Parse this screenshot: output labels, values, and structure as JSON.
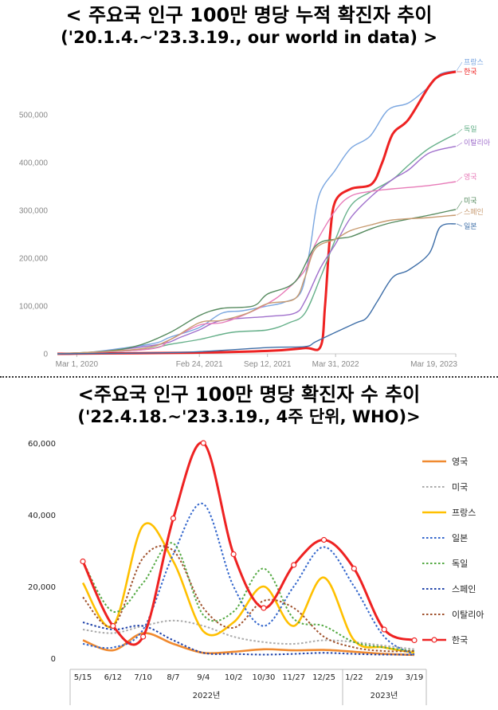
{
  "header": {
    "title1": "< 주요국 인구 100만 명당 누적 확진자 추이",
    "subtitle1": "('20.1.4.~'23.3.19., our world in data) >",
    "title2": "<주요국 인구 100만 명당 확진자 수 추이",
    "subtitle2": "('22.4.18.~'23.3.19., 4주 단위, WHO)>"
  },
  "chart_data": [
    {
      "type": "line",
      "title": "< 주요국 인구 100만 명당 누적 확진자 추이",
      "subtitle": "('20.1.4.~'23.3.19., our world in data) >",
      "x_tick_labels": [
        "Mar 1, 2020",
        "Feb 24, 2021",
        "Sep 12, 2021",
        "Mar 31, 2022",
        "Mar 19, 2023"
      ],
      "x_range": [
        "2020-01-04",
        "2023-03-19"
      ],
      "ylim": [
        0,
        600000
      ],
      "y_ticks": [
        0,
        100000,
        200000,
        300000,
        400000,
        500000
      ],
      "y_tick_labels": [
        "0",
        "100,000",
        "200,000",
        "300,000",
        "400,000",
        "500,000"
      ],
      "grid": false,
      "legend": "right, labels at line ends",
      "series": [
        {
          "name": "프랑스",
          "color": "#7aa6e0",
          "points": [
            [
              "2020-01-04",
              0
            ],
            [
              "2020-03-01",
              0
            ],
            [
              "2020-10-01",
              20000
            ],
            [
              "2020-12-01",
              35000
            ],
            [
              "2021-02-24",
              55000
            ],
            [
              "2021-05-01",
              85000
            ],
            [
              "2021-07-01",
              90000
            ],
            [
              "2021-09-12",
              100000
            ],
            [
              "2021-11-01",
              108000
            ],
            [
              "2021-12-20",
              130000
            ],
            [
              "2022-01-15",
              220000
            ],
            [
              "2022-02-10",
              330000
            ],
            [
              "2022-03-31",
              385000
            ],
            [
              "2022-05-15",
              430000
            ],
            [
              "2022-07-10",
              455000
            ],
            [
              "2022-09-01",
              510000
            ],
            [
              "2022-11-01",
              525000
            ],
            [
              "2023-01-01",
              560000
            ],
            [
              "2023-02-01",
              585000
            ],
            [
              "2023-03-19",
              592000
            ]
          ]
        },
        {
          "name": "한국",
          "color": "#ee2222",
          "points": [
            [
              "2020-01-04",
              0
            ],
            [
              "2020-03-01",
              500
            ],
            [
              "2021-01-01",
              2000
            ],
            [
              "2021-09-12",
              6000
            ],
            [
              "2021-12-31",
              12000
            ],
            [
              "2022-02-15",
              15000
            ],
            [
              "2022-02-28",
              100000
            ],
            [
              "2022-03-15",
              250000
            ],
            [
              "2022-03-31",
              320000
            ],
            [
              "2022-05-15",
              345000
            ],
            [
              "2022-07-15",
              355000
            ],
            [
              "2022-08-15",
              400000
            ],
            [
              "2022-09-15",
              460000
            ],
            [
              "2022-10-31",
              490000
            ],
            [
              "2022-12-31",
              560000
            ],
            [
              "2023-02-01",
              582000
            ],
            [
              "2023-03-19",
              590000
            ]
          ]
        },
        {
          "name": "독일",
          "color": "#66b08a",
          "points": [
            [
              "2020-01-04",
              0
            ],
            [
              "2020-09-01",
              8000
            ],
            [
              "2020-12-01",
              20000
            ],
            [
              "2021-02-24",
              30000
            ],
            [
              "2021-06-01",
              45000
            ],
            [
              "2021-09-12",
              50000
            ],
            [
              "2021-11-15",
              65000
            ],
            [
              "2021-12-31",
              85000
            ],
            [
              "2022-02-15",
              160000
            ],
            [
              "2022-03-31",
              240000
            ],
            [
              "2022-05-15",
              310000
            ],
            [
              "2022-07-15",
              340000
            ],
            [
              "2022-09-15",
              365000
            ],
            [
              "2022-11-01",
              395000
            ],
            [
              "2022-12-31",
              430000
            ],
            [
              "2023-03-19",
              460000
            ]
          ]
        },
        {
          "name": "이탈리아",
          "color": "#a070cc",
          "points": [
            [
              "2020-01-04",
              0
            ],
            [
              "2020-05-01",
              4000
            ],
            [
              "2020-11-01",
              20000
            ],
            [
              "2021-01-01",
              35000
            ],
            [
              "2021-02-24",
              50000
            ],
            [
              "2021-05-01",
              70000
            ],
            [
              "2021-09-12",
              78000
            ],
            [
              "2021-12-01",
              85000
            ],
            [
              "2021-12-31",
              110000
            ],
            [
              "2022-02-15",
              180000
            ],
            [
              "2022-03-31",
              230000
            ],
            [
              "2022-05-15",
              285000
            ],
            [
              "2022-07-15",
              330000
            ],
            [
              "2022-09-15",
              365000
            ],
            [
              "2022-11-01",
              385000
            ],
            [
              "2022-12-31",
              420000
            ],
            [
              "2023-03-19",
              434000
            ]
          ]
        },
        {
          "name": "영국",
          "color": "#e77bb8",
          "points": [
            [
              "2020-01-04",
              0
            ],
            [
              "2020-10-01",
              10000
            ],
            [
              "2020-12-01",
              30000
            ],
            [
              "2021-02-24",
              60000
            ],
            [
              "2021-05-01",
              65000
            ],
            [
              "2021-07-01",
              80000
            ],
            [
              "2021-09-12",
              105000
            ],
            [
              "2021-11-01",
              130000
            ],
            [
              "2021-12-31",
              175000
            ],
            [
              "2022-01-31",
              230000
            ],
            [
              "2022-03-31",
              300000
            ],
            [
              "2022-05-15",
              330000
            ],
            [
              "2022-07-15",
              340000
            ],
            [
              "2022-09-15",
              345000
            ],
            [
              "2022-12-31",
              352000
            ],
            [
              "2023-03-19",
              360000
            ]
          ]
        },
        {
          "name": "미국",
          "color": "#558a5e",
          "points": [
            [
              "2020-01-04",
              0
            ],
            [
              "2020-06-01",
              6000
            ],
            [
              "2020-09-01",
              18000
            ],
            [
              "2020-12-01",
              45000
            ],
            [
              "2021-02-24",
              80000
            ],
            [
              "2021-05-01",
              95000
            ],
            [
              "2021-08-01",
              100000
            ],
            [
              "2021-09-12",
              125000
            ],
            [
              "2021-12-01",
              150000
            ],
            [
              "2022-01-31",
              225000
            ],
            [
              "2022-03-31",
              240000
            ],
            [
              "2022-05-15",
              245000
            ],
            [
              "2022-07-15",
              262000
            ],
            [
              "2022-09-15",
              275000
            ],
            [
              "2022-12-31",
              290000
            ],
            [
              "2023-03-19",
              302000
            ]
          ]
        },
        {
          "name": "스페인",
          "color": "#c79a70",
          "points": [
            [
              "2020-01-04",
              0
            ],
            [
              "2020-09-01",
              10000
            ],
            [
              "2020-12-01",
              30000
            ],
            [
              "2021-02-24",
              65000
            ],
            [
              "2021-05-01",
              70000
            ],
            [
              "2021-07-15",
              85000
            ],
            [
              "2021-09-12",
              105000
            ],
            [
              "2021-12-01",
              115000
            ],
            [
              "2021-12-31",
              160000
            ],
            [
              "2022-01-31",
              220000
            ],
            [
              "2022-03-31",
              240000
            ],
            [
              "2022-05-15",
              258000
            ],
            [
              "2022-07-15",
              270000
            ],
            [
              "2022-09-15",
              280000
            ],
            [
              "2022-12-31",
              285000
            ],
            [
              "2023-03-19",
              290000
            ]
          ]
        },
        {
          "name": "일본",
          "color": "#3f6fa8",
          "points": [
            [
              "2020-01-04",
              0
            ],
            [
              "2021-01-01",
              3000
            ],
            [
              "2021-09-12",
              13000
            ],
            [
              "2021-12-31",
              15000
            ],
            [
              "2022-01-31",
              25000
            ],
            [
              "2022-03-31",
              45000
            ],
            [
              "2022-05-31",
              65000
            ],
            [
              "2022-06-30",
              75000
            ],
            [
              "2022-08-01",
              110000
            ],
            [
              "2022-09-15",
              160000
            ],
            [
              "2022-10-31",
              175000
            ],
            [
              "2022-12-31",
              210000
            ],
            [
              "2023-02-01",
              265000
            ],
            [
              "2023-03-19",
              272000
            ]
          ]
        }
      ]
    },
    {
      "type": "line",
      "title": "<주요국 인구 100만 명당 확진자 수 추이",
      "subtitle": "('22.4.18.~'23.3.19., 4주 단위, WHO)>",
      "categories": [
        "5/15",
        "6/12",
        "7/10",
        "8/7",
        "9/4",
        "10/2",
        "10/30",
        "11/27",
        "12/25",
        "1/22",
        "2/19",
        "3/19"
      ],
      "year_labels": [
        "2022년",
        "2023년"
      ],
      "ylim": [
        0,
        60000
      ],
      "y_ticks": [
        0,
        20000,
        40000,
        60000
      ],
      "y_tick_labels": [
        "0",
        "20,000",
        "40,000",
        "60,000"
      ],
      "ylabel": "",
      "grid": false,
      "legend": "right",
      "series": [
        {
          "name": "영국",
          "style": "solid",
          "color": "#f08a30",
          "values": [
            5000,
            2200,
            7000,
            4000,
            1500,
            1800,
            2500,
            2200,
            2300,
            1800,
            1200,
            900
          ]
        },
        {
          "name": "미국",
          "style": "dotted",
          "color": "#aaaaaa",
          "values": [
            8000,
            7000,
            9000,
            10500,
            9000,
            6000,
            4500,
            4000,
            5000,
            4500,
            3500,
            2500
          ]
        },
        {
          "name": "프랑스",
          "style": "solid",
          "color": "#ffc000",
          "values": [
            21000,
            9000,
            37000,
            27000,
            7500,
            10000,
            20000,
            9000,
            22500,
            5000,
            3000,
            1500
          ]
        },
        {
          "name": "일본",
          "style": "dotted",
          "color": "#3366cc",
          "values": [
            4000,
            3000,
            8000,
            29000,
            43000,
            20000,
            9000,
            20000,
            31000,
            20000,
            6000,
            1000
          ]
        },
        {
          "name": "독일",
          "style": "dotted",
          "color": "#55aa44",
          "values": [
            27000,
            13000,
            21000,
            32000,
            12000,
            13000,
            25000,
            11000,
            9000,
            4500,
            3000,
            2000
          ]
        },
        {
          "name": "스페인",
          "style": "dotted",
          "color": "#2244aa",
          "values": [
            10000,
            8000,
            9000,
            5000,
            1500,
            1200,
            1000,
            1200,
            1500,
            1200,
            1000,
            1000
          ]
        },
        {
          "name": "이탈리아",
          "style": "dotted",
          "color": "#a0522d",
          "values": [
            17000,
            9000,
            28000,
            30000,
            14000,
            8500,
            16000,
            14000,
            6000,
            3000,
            2000,
            2000
          ]
        },
        {
          "name": "한국",
          "style": "solid-marker",
          "color": "#ee2222",
          "values": [
            27000,
            9000,
            6000,
            39000,
            60000,
            29000,
            14000,
            26000,
            33000,
            25000,
            8000,
            5000
          ]
        }
      ]
    }
  ]
}
